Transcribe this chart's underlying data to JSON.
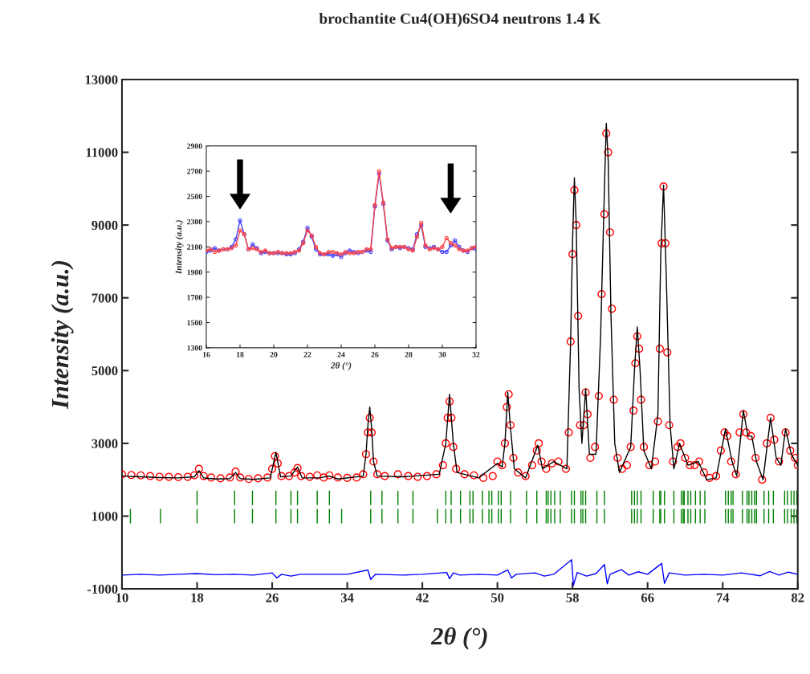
{
  "chart_data": [
    {
      "type": "scatter",
      "title": "brochantite Cu4(OH)6SO4 neutrons 1.4 K",
      "xlabel": "2θ (°)",
      "ylabel": "Intensity (a.u.)",
      "xlim": [
        10,
        82
      ],
      "xticks": [
        10,
        18,
        26,
        34,
        42,
        50,
        58,
        66,
        74,
        82
      ],
      "ylim": [
        -1000,
        13000
      ],
      "yticks": [
        -1000,
        1000,
        3000,
        5000,
        7000,
        9000,
        11000,
        13000
      ],
      "grid": false,
      "legend": false,
      "series": [
        {
          "type": "scatter",
          "marker": "circle",
          "color": "#ff0000",
          "x": [
            10,
            11,
            12,
            13,
            14,
            15,
            16,
            17,
            17.7,
            18.2,
            18.7,
            19.5,
            20.5,
            21.5,
            22.1,
            22.6,
            23.5,
            24.5,
            25.5,
            26.0,
            26.3,
            26.6,
            27.0,
            27.8,
            28.4,
            28.7,
            29.1,
            30,
            30.8,
            31.5,
            32.1,
            33,
            34,
            35,
            35.7,
            36.0,
            36.2,
            36.4,
            36.6,
            36.8,
            37.2,
            38,
            39.4,
            40.5,
            41.5,
            42.5,
            43.5,
            44.2,
            44.5,
            44.7,
            44.9,
            45.1,
            45.3,
            45.6,
            46.5,
            47.5,
            48.5,
            49.5,
            50.0,
            50.5,
            50.8,
            51.0,
            51.2,
            51.4,
            51.7,
            52.2,
            53,
            53.7,
            54.2,
            54.4,
            54.7,
            55.2,
            55.8,
            56.5,
            57.3,
            57.6,
            57.8,
            58.0,
            58.2,
            58.4,
            58.6,
            58.8,
            59.2,
            59.4,
            59.6,
            59.9,
            60.4,
            60.8,
            61.1,
            61.4,
            61.6,
            61.8,
            62.0,
            62.2,
            62.4,
            62.8,
            63.3,
            63.8,
            64.2,
            64.5,
            64.7,
            64.9,
            65.1,
            65.3,
            65.6,
            66.2,
            66.8,
            67.1,
            67.3,
            67.5,
            67.7,
            67.9,
            68.1,
            68.3,
            68.7,
            69.2,
            69.5,
            70,
            70.5,
            71.0,
            71.5,
            72.0,
            72.6,
            73.3,
            73.8,
            74.2,
            74.5,
            74.9,
            75.4,
            75.8,
            76.2,
            76.5,
            77.0,
            77.5,
            78.2,
            78.7,
            79.1,
            79.5,
            80.0,
            80.7,
            81.2,
            81.7,
            82
          ],
          "values": [
            2150,
            2130,
            2120,
            2100,
            2080,
            2080,
            2070,
            2080,
            2120,
            2300,
            2100,
            2060,
            2040,
            2060,
            2220,
            2060,
            2020,
            2040,
            2060,
            2300,
            2650,
            2450,
            2100,
            2100,
            2200,
            2320,
            2100,
            2080,
            2120,
            2060,
            2120,
            2060,
            2050,
            2060,
            2150,
            2700,
            3300,
            3700,
            3300,
            2500,
            2150,
            2100,
            2150,
            2100,
            2080,
            2100,
            2150,
            2400,
            3000,
            3700,
            4150,
            3700,
            2900,
            2300,
            2150,
            2120,
            2050,
            2100,
            2500,
            2400,
            3000,
            4000,
            4350,
            3500,
            2600,
            2200,
            2100,
            2400,
            2800,
            3000,
            2500,
            2300,
            2450,
            2500,
            2300,
            3300,
            5800,
            8200,
            9960,
            9000,
            6500,
            3500,
            3500,
            4400,
            3800,
            2600,
            2900,
            4300,
            7100,
            9300,
            11520,
            11000,
            8800,
            6700,
            4200,
            2600,
            2300,
            2400,
            2900,
            3900,
            5200,
            5940,
            5600,
            4200,
            2900,
            2400,
            2500,
            3600,
            5600,
            8500,
            10060,
            8500,
            5500,
            3500,
            2500,
            2900,
            3000,
            2600,
            2400,
            2400,
            2500,
            2200,
            2050,
            2100,
            2800,
            3300,
            3200,
            2500,
            2150,
            3300,
            3800,
            3300,
            3200,
            2600,
            2000,
            3000,
            3700,
            3100,
            2500,
            3300,
            2800,
            2600,
            2400
          ]
        },
        {
          "type": "line",
          "marker": "none",
          "color": "#000000",
          "x": [
            10,
            12,
            14,
            16,
            17.7,
            18.2,
            18.7,
            20,
            21.5,
            22.1,
            22.6,
            24,
            25.8,
            26.4,
            26.9,
            28.0,
            28.4,
            28.7,
            29.2,
            31,
            32.1,
            33,
            35.7,
            36.0,
            36.2,
            36.4,
            36.6,
            36.8,
            37.2,
            40,
            43.8,
            44.5,
            44.9,
            45.3,
            45.7,
            48,
            50.0,
            50.5,
            50.8,
            51.1,
            51.4,
            51.8,
            53,
            54.3,
            54.8,
            56,
            57.4,
            57.8,
            58.0,
            58.2,
            58.4,
            58.7,
            59.0,
            59.4,
            59.8,
            60.5,
            61.0,
            61.4,
            61.6,
            61.8,
            62.1,
            62.5,
            63.0,
            64.2,
            64.6,
            64.9,
            65.2,
            65.6,
            66.4,
            67.1,
            67.4,
            67.7,
            68.0,
            68.4,
            68.8,
            69.4,
            70.3,
            71.4,
            72.3,
            73.3,
            74.3,
            75.0,
            75.5,
            76.2,
            76.7,
            77.1,
            77.6,
            78.3,
            79.1,
            79.7,
            80.2,
            80.7,
            81.3,
            82
          ],
          "values": [
            2100,
            2080,
            2060,
            2050,
            2080,
            2250,
            2050,
            2020,
            2030,
            2200,
            2030,
            2010,
            2050,
            2750,
            2080,
            2100,
            2250,
            2350,
            2050,
            2050,
            2100,
            2020,
            2100,
            2700,
            3500,
            4000,
            3400,
            2500,
            2100,
            2080,
            2150,
            3000,
            4350,
            3000,
            2200,
            2050,
            2450,
            2350,
            3000,
            4400,
            3400,
            2300,
            2050,
            2950,
            2300,
            2500,
            2300,
            5800,
            8500,
            10300,
            9000,
            4500,
            3000,
            4500,
            2700,
            2700,
            6000,
            10000,
            11800,
            10800,
            6500,
            3000,
            2200,
            2900,
            5000,
            6200,
            5000,
            2800,
            2300,
            3800,
            8200,
            10100,
            7500,
            3500,
            2300,
            3000,
            2400,
            2500,
            2000,
            2050,
            3400,
            2500,
            2100,
            3900,
            3200,
            3200,
            2500,
            2000,
            3700,
            2600,
            2400,
            3400,
            2700,
            2400
          ]
        },
        {
          "type": "line",
          "marker": "none",
          "color": "#0000ff",
          "x": [
            10,
            12,
            14,
            16,
            18,
            20,
            22,
            24,
            26,
            26.5,
            27,
            28,
            29,
            32,
            34,
            36.2,
            36.5,
            37,
            40,
            42,
            44.6,
            44.9,
            45.3,
            46,
            48,
            50,
            51.1,
            51.5,
            52,
            54,
            55,
            56,
            57.9,
            58.1,
            58.5,
            59.5,
            60.5,
            61.4,
            61.7,
            62,
            63.2,
            64,
            65,
            66,
            67.5,
            67.8,
            68.3,
            70,
            72,
            74,
            76,
            78,
            79,
            80,
            81,
            82
          ],
          "values": [
            -620,
            -600,
            -620,
            -600,
            -580,
            -610,
            -600,
            -620,
            -560,
            -700,
            -600,
            -650,
            -600,
            -600,
            -600,
            -480,
            -740,
            -600,
            -620,
            -600,
            -550,
            -720,
            -560,
            -620,
            -600,
            -620,
            -480,
            -700,
            -600,
            -560,
            -650,
            -600,
            -200,
            -900,
            -550,
            -650,
            -580,
            -330,
            -860,
            -600,
            -470,
            -620,
            -530,
            -600,
            -300,
            -850,
            -560,
            -620,
            -600,
            -620,
            -560,
            -640,
            -520,
            -620,
            -540,
            -600
          ]
        },
        {
          "type": "bar",
          "color": "#008000",
          "base": [
            800,
            800,
            800,
            800,
            800,
            800,
            800,
            800,
            800,
            800,
            800,
            800,
            800,
            800,
            800,
            800,
            800,
            800,
            800,
            800,
            800,
            800,
            800,
            800,
            800,
            800,
            800,
            800,
            800,
            800,
            800,
            800,
            800,
            800,
            800,
            800,
            800,
            800,
            800,
            800,
            800,
            800,
            800,
            800,
            800,
            800,
            800,
            800,
            800,
            800,
            800,
            800,
            800,
            800,
            800,
            800,
            800,
            800,
            800,
            800,
            800,
            800,
            800,
            800,
            800,
            800,
            800,
            800,
            800,
            800,
            800,
            800,
            800,
            800,
            800,
            800
          ],
          "x": [
            10.9,
            14.1,
            18.0,
            22.0,
            23.9,
            26.4,
            28.0,
            28.7,
            30.8,
            32.1,
            33.4,
            36.5,
            37.7,
            39.4,
            41.0,
            43.6,
            44.5,
            45.07,
            46.07,
            47.07,
            47.4,
            48.4,
            49.1,
            49.4,
            50.1,
            50.4,
            51.4,
            53.1,
            54.2,
            55.2,
            55.4,
            55.7,
            56.1,
            56.7,
            57.9,
            58.2,
            58.9,
            59.1,
            59.4,
            60.6,
            61.4,
            64.3,
            64.6,
            64.9,
            65.3,
            66.6,
            67.3,
            67.4,
            67.8,
            68.8,
            69.6,
            69.8,
            69.9,
            70.3,
            70.6,
            71.1,
            71.6,
            72.1,
            74.3,
            74.6,
            74.9,
            75.1,
            76.1,
            76.6,
            76.8,
            77.1,
            77.4,
            77.6,
            78.4,
            78.9,
            79.4,
            80.6,
            80.9,
            81.3,
            81.6,
            81.9
          ],
          "values": [
            400,
            400,
            400,
            400,
            400,
            400,
            400,
            400,
            400,
            400,
            400,
            400,
            400,
            400,
            400,
            400,
            400,
            400,
            400,
            400,
            400,
            400,
            400,
            400,
            400,
            400,
            400,
            400,
            400,
            400,
            400,
            400,
            400,
            400,
            400,
            400,
            400,
            400,
            400,
            400,
            400,
            400,
            400,
            400,
            400,
            400,
            400,
            400,
            400,
            400,
            400,
            400,
            400,
            400,
            400,
            400,
            400,
            400,
            400,
            400,
            400,
            400,
            400,
            400,
            400,
            400,
            400,
            400,
            400,
            400,
            400,
            400,
            400,
            400,
            400,
            400
          ]
        },
        {
          "type": "bar",
          "color": "#008000",
          "base": [
            1300,
            1300,
            1300,
            1300,
            1300,
            1300,
            1300,
            1300,
            1300,
            1300,
            1300,
            1300,
            1300,
            1300,
            1300,
            1300,
            1300,
            1300,
            1300,
            1300,
            1300,
            1300,
            1300,
            1300,
            1300,
            1300,
            1300,
            1300,
            1300,
            1300,
            1300,
            1300,
            1300,
            1300,
            1300,
            1300,
            1300,
            1300,
            1300,
            1300,
            1300,
            1300,
            1300,
            1300,
            1300,
            1300,
            1300,
            1300,
            1300,
            1300,
            1300,
            1300,
            1300,
            1300,
            1300,
            1300,
            1300,
            1300,
            1300,
            1300,
            1300,
            1300,
            1300,
            1300,
            1300,
            1300,
            1300,
            1300,
            1300,
            1300,
            1300,
            1300
          ],
          "x": [
            18.0,
            22.0,
            23.9,
            26.4,
            28.0,
            28.7,
            30.8,
            32.1,
            36.5,
            37.7,
            39.4,
            41.0,
            44.5,
            45.07,
            46.07,
            47.07,
            47.4,
            48.4,
            49.1,
            49.4,
            50.1,
            50.4,
            51.4,
            53.1,
            54.2,
            55.2,
            55.4,
            55.7,
            56.1,
            56.7,
            57.9,
            58.2,
            58.9,
            59.1,
            59.4,
            60.6,
            61.4,
            64.3,
            64.6,
            64.9,
            65.3,
            66.6,
            67.3,
            67.4,
            67.8,
            68.8,
            69.6,
            69.8,
            69.9,
            70.3,
            70.6,
            71.1,
            71.6,
            72.1,
            74.3,
            74.6,
            74.9,
            75.1,
            76.1,
            76.6,
            76.8,
            77.1,
            77.4,
            77.6,
            78.4,
            78.9,
            79.4,
            80.6,
            80.9,
            81.3,
            81.6,
            81.9
          ],
          "values": [
            400,
            400,
            400,
            400,
            400,
            400,
            400,
            400,
            400,
            400,
            400,
            400,
            400,
            400,
            400,
            400,
            400,
            400,
            400,
            400,
            400,
            400,
            400,
            400,
            400,
            400,
            400,
            400,
            400,
            400,
            400,
            400,
            400,
            400,
            400,
            400,
            400,
            400,
            400,
            400,
            400,
            400,
            400,
            400,
            400,
            400,
            400,
            400,
            400,
            400,
            400,
            400,
            400,
            400,
            400,
            400,
            400,
            400,
            400,
            400,
            400,
            400,
            400,
            400,
            400,
            400,
            400,
            400,
            400,
            400,
            400,
            400
          ]
        }
      ]
    },
    {
      "type": "line",
      "xlabel": "2θ (°)",
      "ylabel": "Intensity (a.u.)",
      "xlim": [
        16,
        32
      ],
      "xticks": [
        16,
        18,
        20,
        22,
        24,
        26,
        28,
        30,
        32
      ],
      "ylim": [
        1300,
        2900
      ],
      "yticks": [
        1300,
        1500,
        1700,
        1900,
        2100,
        2300,
        2500,
        2700,
        2900
      ],
      "grid": false,
      "legend": false,
      "marker": "circle",
      "x": [
        16,
        16.25,
        16.5,
        16.75,
        17,
        17.25,
        17.5,
        17.75,
        18,
        18.25,
        18.5,
        18.75,
        19,
        19.25,
        19.5,
        19.75,
        20,
        20.25,
        20.5,
        20.75,
        21,
        21.25,
        21.5,
        21.75,
        22,
        22.25,
        22.5,
        22.75,
        23,
        23.25,
        23.5,
        23.75,
        24,
        24.25,
        24.5,
        24.75,
        25,
        25.25,
        25.5,
        25.75,
        26,
        26.25,
        26.5,
        26.75,
        27,
        27.25,
        27.5,
        27.75,
        28,
        28.25,
        28.5,
        28.75,
        29,
        29.25,
        29.5,
        29.75,
        30,
        30.25,
        30.5,
        30.75,
        31,
        31.25,
        31.5,
        31.75,
        32
      ],
      "series": [
        {
          "color": "#4040ff",
          "values": [
            2060,
            2070,
            2090,
            2070,
            2080,
            2080,
            2100,
            2160,
            2310,
            2200,
            2080,
            2120,
            2090,
            2050,
            2060,
            2050,
            2050,
            2050,
            2050,
            2040,
            2040,
            2050,
            2080,
            2140,
            2250,
            2180,
            2080,
            2040,
            2040,
            2040,
            2030,
            2040,
            2020,
            2050,
            2070,
            2060,
            2050,
            2060,
            2070,
            2060,
            2420,
            2680,
            2440,
            2150,
            2080,
            2100,
            2090,
            2100,
            2090,
            2080,
            2200,
            2270,
            2100,
            2090,
            2100,
            2080,
            2060,
            2060,
            2110,
            2150,
            2100,
            2070,
            2060,
            2090,
            2080
          ]
        },
        {
          "color": "#ff4040",
          "values": [
            2070,
            2080,
            2060,
            2070,
            2080,
            2080,
            2090,
            2110,
            2230,
            2200,
            2080,
            2090,
            2080,
            2060,
            2070,
            2050,
            2050,
            2060,
            2050,
            2050,
            2050,
            2060,
            2070,
            2130,
            2230,
            2190,
            2100,
            2050,
            2040,
            2060,
            2060,
            2050,
            2040,
            2060,
            2050,
            2050,
            2060,
            2060,
            2080,
            2080,
            2430,
            2700,
            2450,
            2160,
            2090,
            2100,
            2100,
            2100,
            2080,
            2070,
            2180,
            2290,
            2110,
            2080,
            2090,
            2080,
            2100,
            2170,
            2130,
            2110,
            2080,
            2070,
            2070,
            2090,
            2100
          ]
        }
      ]
    }
  ]
}
